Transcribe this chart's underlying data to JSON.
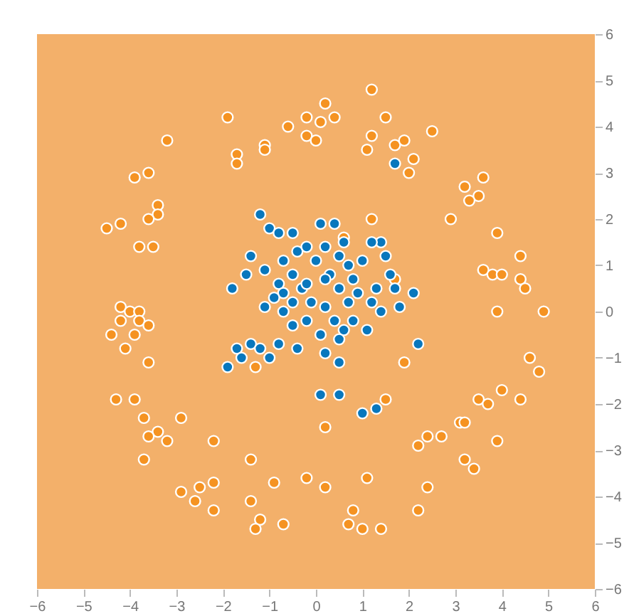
{
  "chart_data": {
    "type": "scatter",
    "xlim": [
      -6,
      6
    ],
    "ylim": [
      -6,
      6
    ],
    "xticks": [
      -6,
      -5,
      -4,
      -3,
      -2,
      -1,
      0,
      1,
      2,
      3,
      4,
      5,
      6
    ],
    "yticks": [
      -6,
      -5,
      -4,
      -3,
      -2,
      -1,
      0,
      1,
      2,
      3,
      4,
      5,
      6
    ],
    "grid": false,
    "legend": false,
    "marker": "circle",
    "series": [
      {
        "color": "#f59322",
        "x": [
          -1.9,
          -3.2,
          -1.7,
          -1.7,
          -1.1,
          -1.1,
          -0.6,
          -0.2,
          0.1,
          -0.2,
          0.0,
          0.2,
          -3.6,
          -3.9,
          -3.4,
          -3.4,
          -3.6,
          -4.2,
          -4.5,
          -3.8,
          -3.5,
          1.2,
          0.4,
          1.5,
          1.2,
          1.1,
          1.7,
          1.9,
          2.1,
          2.0,
          2.5,
          3.2,
          3.6,
          3.5,
          3.3,
          1.2,
          2.9,
          3.9,
          0.6,
          4.4,
          3.6,
          3.8,
          4.0,
          4.4,
          4.5,
          1.7,
          3.9,
          4.9,
          -4.2,
          -4.0,
          -3.8,
          -4.2,
          -3.8,
          -3.6,
          -4.4,
          -3.9,
          -4.1,
          -3.6,
          -4.3,
          -3.9,
          -3.7,
          -3.4,
          -3.6,
          -3.2,
          -2.9,
          -3.7,
          -2.2,
          -1.4,
          -2.9,
          -2.5,
          -2.2,
          -2.6,
          -2.2,
          -1.4,
          -0.9,
          -1.2,
          -1.3,
          -0.7,
          -0.2,
          0.2,
          0.2,
          -1.3,
          4.6,
          4.8,
          4.0,
          3.5,
          3.7,
          4.4,
          3.1,
          3.2,
          2.4,
          2.7,
          2.2,
          3.9,
          3.2,
          3.4,
          2.4,
          2.2,
          1.1,
          0.8,
          0.7,
          1.0,
          1.4,
          1.9,
          1.5
        ],
        "values": [
          4.2,
          3.7,
          3.4,
          3.2,
          3.6,
          3.5,
          4.0,
          4.2,
          4.1,
          3.8,
          3.7,
          4.5,
          3.0,
          2.9,
          2.3,
          2.1,
          2.0,
          1.9,
          1.8,
          1.4,
          1.4,
          4.8,
          4.2,
          4.2,
          3.8,
          3.5,
          3.6,
          3.7,
          3.3,
          3.0,
          3.9,
          2.7,
          2.9,
          2.5,
          2.4,
          2.0,
          2.0,
          1.7,
          1.6,
          1.2,
          0.9,
          0.8,
          0.8,
          0.7,
          0.5,
          0.7,
          0.0,
          0.0,
          0.1,
          0.0,
          0.0,
          -0.2,
          -0.2,
          -0.3,
          -0.5,
          -0.5,
          -0.8,
          -1.1,
          -1.9,
          -1.9,
          -2.3,
          -2.6,
          -2.7,
          -2.8,
          -2.3,
          -3.2,
          -2.8,
          -3.2,
          -3.9,
          -3.8,
          -3.7,
          -4.1,
          -4.3,
          -4.1,
          -3.7,
          -4.5,
          -4.7,
          -4.6,
          -3.6,
          -3.8,
          -2.5,
          -1.2,
          -1.0,
          -1.3,
          -1.7,
          -1.9,
          -2.0,
          -1.9,
          -2.4,
          -2.4,
          -2.7,
          -2.7,
          -2.9,
          -2.8,
          -3.2,
          -3.4,
          -3.8,
          -4.3,
          -3.6,
          -4.3,
          -4.6,
          -4.7,
          -4.7,
          -1.1,
          -1.9
        ]
      },
      {
        "color": "#0877bd",
        "x": [
          -1.2,
          -1.0,
          -0.8,
          -1.4,
          -1.8,
          -1.5,
          -1.1,
          -0.8,
          -0.5,
          -0.7,
          -0.9,
          -0.5,
          -0.3,
          -0.2,
          0.1,
          0.4,
          -0.4,
          0.0,
          0.2,
          0.5,
          0.3,
          0.7,
          0.8,
          0.5,
          0.7,
          0.9,
          1.2,
          1.3,
          1.6,
          1.5,
          1.4,
          1.2,
          1.0,
          0.6,
          0.2,
          -0.1,
          0.2,
          0.4,
          0.6,
          0.8,
          1.1,
          0.5,
          0.1,
          -0.2,
          -0.5,
          -0.7,
          -0.8,
          -1.4,
          -1.7,
          -1.9,
          -1.6,
          -1.2,
          -1.0,
          0.5,
          1.4,
          1.7,
          1.8,
          2.1,
          0.1,
          0.5,
          1.0,
          1.3,
          2.2,
          1.7,
          -0.2,
          -0.5,
          -0.7,
          -1.1,
          -0.4,
          0.2
        ],
        "values": [
          2.1,
          1.8,
          1.7,
          1.2,
          0.5,
          0.8,
          0.9,
          0.6,
          0.8,
          0.4,
          0.3,
          0.2,
          0.5,
          0.6,
          1.9,
          1.9,
          1.3,
          1.1,
          1.4,
          1.2,
          0.8,
          1.0,
          0.7,
          0.5,
          0.2,
          0.4,
          0.2,
          0.5,
          0.8,
          1.2,
          1.5,
          1.5,
          1.1,
          1.5,
          0.7,
          0.2,
          0.1,
          -0.2,
          -0.4,
          -0.2,
          -0.4,
          -0.6,
          -0.5,
          -0.2,
          -0.3,
          0.0,
          -0.7,
          -0.7,
          -0.8,
          -1.2,
          -1.0,
          -0.8,
          -1.0,
          -1.1,
          0.0,
          0.5,
          0.1,
          0.4,
          -1.8,
          -1.8,
          -2.2,
          -2.1,
          -0.7,
          3.2,
          1.4,
          1.7,
          1.1,
          0.1,
          -0.8,
          -0.9
        ]
      }
    ]
  }
}
